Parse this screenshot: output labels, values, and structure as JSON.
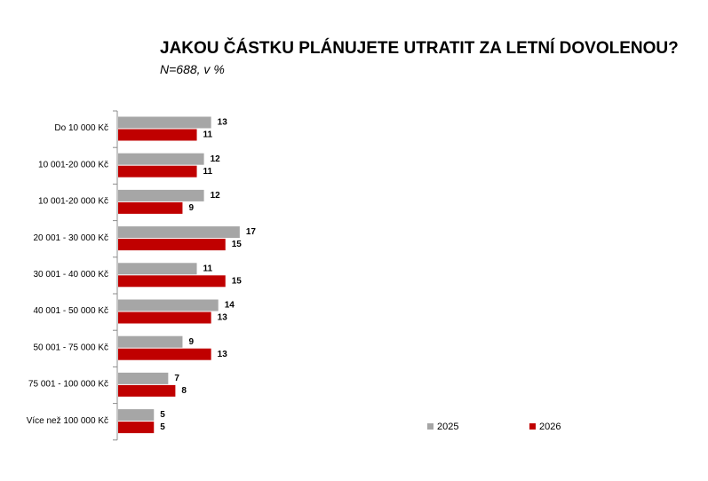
{
  "chart_data": {
    "type": "bar",
    "orientation": "horizontal",
    "title": "JAKOU ČÁSTKU PLÁNUJETE UTRATIT ZA LETNÍ DOVOLENOU?",
    "subtitle": "N=688, v %",
    "categories": [
      "Do 10 000 Kč",
      "10 001-20 000 Kč",
      "10 001-20 000 Kč",
      "20 001 - 30 000 Kč",
      "30 001 - 40 000 Kč",
      "40 001 - 50 000 Kč",
      "50 001 - 75 000 Kč",
      "75 001 - 100 000 Kč",
      "Více než 100 000 Kč"
    ],
    "series": [
      {
        "name": "2025",
        "color": "#a6a6a6",
        "values": [
          13,
          12,
          12,
          17,
          11,
          14,
          9,
          7,
          5
        ]
      },
      {
        "name": "2026",
        "color": "#c00000",
        "values": [
          11,
          11,
          9,
          15,
          15,
          13,
          13,
          8,
          5
        ]
      }
    ],
    "xlim": [
      0,
      20
    ],
    "grid": false,
    "legend": "bottom-right"
  }
}
